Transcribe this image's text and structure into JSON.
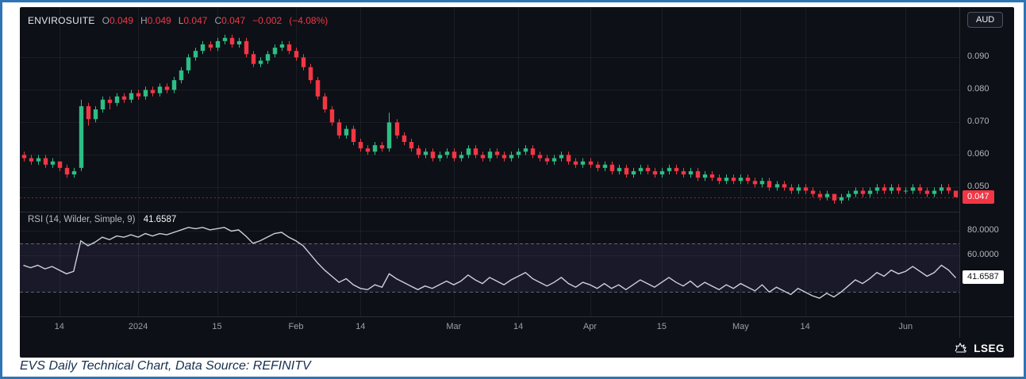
{
  "quote": {
    "symbol": "ENVIROSUITE",
    "open_label": "O",
    "open": "0.049",
    "high_label": "H",
    "high": "0.049",
    "low_label": "L",
    "low": "0.047",
    "close_label": "C",
    "close": "0.047",
    "change": "−0.002",
    "change_pct": "(−4.08%)"
  },
  "currency_button": "AUD",
  "price_axis": {
    "labels": [
      "0.090",
      "0.080",
      "0.070",
      "0.060",
      "0.050"
    ],
    "last_price_badge": "0.047"
  },
  "rsi": {
    "label": "RSI (14, Wilder, Simple, 9)",
    "value": "41.6587",
    "axis_labels": [
      "80.0000",
      "60.0000"
    ],
    "badge": "41.6587"
  },
  "footer": {
    "brand": "LSEG"
  },
  "caption": "EVS Daily Technical Chart, Data Source: REFINITV",
  "colors": {
    "up": "#2ebd85",
    "down": "#f23645",
    "rsi_line": "#cdd0d9",
    "rsi_band_fill": "rgba(140,110,220,0.10)",
    "grid": "rgba(255,255,255,0.055)",
    "separator": "#2a2e39",
    "background": "#0d1016",
    "price_badge_bg": "#f23645",
    "frame_border": "#2e75b6",
    "caption_text": "#16304f"
  },
  "chart_data": {
    "type": "candlestick",
    "title": "ENVIROSUITE daily candlestick with RSI pane",
    "legend_position": "top-left",
    "grid": true,
    "x_ticks": [
      {
        "label": "14",
        "index": 5
      },
      {
        "label": "2024",
        "index": 16
      },
      {
        "label": "15",
        "index": 27
      },
      {
        "label": "Feb",
        "index": 38
      },
      {
        "label": "14",
        "index": 47
      },
      {
        "label": "Mar",
        "index": 60
      },
      {
        "label": "14",
        "index": 69
      },
      {
        "label": "Apr",
        "index": 79
      },
      {
        "label": "15",
        "index": 89
      },
      {
        "label": "May",
        "index": 100
      },
      {
        "label": "14",
        "index": 109
      },
      {
        "label": "Jun",
        "index": 123
      }
    ],
    "price_pane": {
      "ylim": [
        0.044,
        0.104
      ],
      "gridlines": [
        0.09,
        0.08,
        0.07,
        0.06,
        0.05
      ],
      "last_price": 0.047,
      "ohlc": [
        [
          0.06,
          0.061,
          0.058,
          0.059
        ],
        [
          0.059,
          0.06,
          0.057,
          0.058
        ],
        [
          0.058,
          0.06,
          0.057,
          0.059
        ],
        [
          0.059,
          0.06,
          0.056,
          0.057
        ],
        [
          0.057,
          0.059,
          0.056,
          0.058
        ],
        [
          0.058,
          0.058,
          0.055,
          0.056
        ],
        [
          0.056,
          0.057,
          0.053,
          0.054
        ],
        [
          0.054,
          0.056,
          0.053,
          0.055
        ],
        [
          0.056,
          0.077,
          0.055,
          0.075
        ],
        [
          0.075,
          0.076,
          0.069,
          0.071
        ],
        [
          0.071,
          0.075,
          0.07,
          0.074
        ],
        [
          0.074,
          0.078,
          0.073,
          0.077
        ],
        [
          0.077,
          0.078,
          0.074,
          0.076
        ],
        [
          0.076,
          0.079,
          0.075,
          0.078
        ],
        [
          0.078,
          0.079,
          0.076,
          0.077
        ],
        [
          0.077,
          0.08,
          0.076,
          0.079
        ],
        [
          0.079,
          0.08,
          0.077,
          0.078
        ],
        [
          0.078,
          0.081,
          0.077,
          0.08
        ],
        [
          0.08,
          0.081,
          0.078,
          0.079
        ],
        [
          0.079,
          0.082,
          0.078,
          0.081
        ],
        [
          0.081,
          0.082,
          0.079,
          0.08
        ],
        [
          0.08,
          0.084,
          0.079,
          0.083
        ],
        [
          0.083,
          0.087,
          0.082,
          0.086
        ],
        [
          0.086,
          0.091,
          0.085,
          0.09
        ],
        [
          0.09,
          0.093,
          0.089,
          0.092
        ],
        [
          0.092,
          0.095,
          0.091,
          0.094
        ],
        [
          0.094,
          0.095,
          0.092,
          0.093
        ],
        [
          0.093,
          0.096,
          0.092,
          0.095
        ],
        [
          0.095,
          0.097,
          0.094,
          0.096
        ],
        [
          0.096,
          0.097,
          0.093,
          0.094
        ],
        [
          0.094,
          0.096,
          0.093,
          0.095
        ],
        [
          0.095,
          0.096,
          0.09,
          0.091
        ],
        [
          0.091,
          0.092,
          0.087,
          0.088
        ],
        [
          0.088,
          0.09,
          0.087,
          0.089
        ],
        [
          0.089,
          0.092,
          0.088,
          0.091
        ],
        [
          0.091,
          0.094,
          0.09,
          0.093
        ],
        [
          0.093,
          0.095,
          0.092,
          0.094
        ],
        [
          0.094,
          0.095,
          0.091,
          0.092
        ],
        [
          0.092,
          0.093,
          0.089,
          0.09
        ],
        [
          0.09,
          0.091,
          0.086,
          0.087
        ],
        [
          0.087,
          0.088,
          0.082,
          0.083
        ],
        [
          0.083,
          0.084,
          0.077,
          0.078
        ],
        [
          0.078,
          0.079,
          0.073,
          0.074
        ],
        [
          0.074,
          0.075,
          0.069,
          0.07
        ],
        [
          0.07,
          0.071,
          0.065,
          0.066
        ],
        [
          0.066,
          0.069,
          0.065,
          0.068
        ],
        [
          0.068,
          0.069,
          0.063,
          0.064
        ],
        [
          0.064,
          0.065,
          0.061,
          0.062
        ],
        [
          0.062,
          0.063,
          0.06,
          0.061
        ],
        [
          0.061,
          0.064,
          0.06,
          0.063
        ],
        [
          0.063,
          0.064,
          0.061,
          0.062
        ],
        [
          0.062,
          0.073,
          0.061,
          0.07
        ],
        [
          0.07,
          0.071,
          0.065,
          0.066
        ],
        [
          0.066,
          0.067,
          0.063,
          0.064
        ],
        [
          0.064,
          0.065,
          0.061,
          0.062
        ],
        [
          0.062,
          0.063,
          0.059,
          0.06
        ],
        [
          0.06,
          0.062,
          0.059,
          0.061
        ],
        [
          0.061,
          0.062,
          0.058,
          0.059
        ],
        [
          0.059,
          0.061,
          0.058,
          0.06
        ],
        [
          0.06,
          0.062,
          0.059,
          0.061
        ],
        [
          0.061,
          0.062,
          0.058,
          0.059
        ],
        [
          0.059,
          0.061,
          0.058,
          0.06
        ],
        [
          0.06,
          0.063,
          0.059,
          0.062
        ],
        [
          0.062,
          0.063,
          0.059,
          0.06
        ],
        [
          0.06,
          0.061,
          0.058,
          0.059
        ],
        [
          0.059,
          0.062,
          0.058,
          0.061
        ],
        [
          0.061,
          0.062,
          0.059,
          0.06
        ],
        [
          0.06,
          0.061,
          0.058,
          0.059
        ],
        [
          0.059,
          0.061,
          0.058,
          0.06
        ],
        [
          0.06,
          0.062,
          0.059,
          0.061
        ],
        [
          0.061,
          0.063,
          0.06,
          0.062
        ],
        [
          0.062,
          0.063,
          0.059,
          0.06
        ],
        [
          0.06,
          0.061,
          0.058,
          0.059
        ],
        [
          0.059,
          0.06,
          0.057,
          0.058
        ],
        [
          0.058,
          0.06,
          0.057,
          0.059
        ],
        [
          0.059,
          0.061,
          0.058,
          0.06
        ],
        [
          0.06,
          0.061,
          0.057,
          0.058
        ],
        [
          0.058,
          0.059,
          0.056,
          0.057
        ],
        [
          0.057,
          0.059,
          0.056,
          0.058
        ],
        [
          0.058,
          0.059,
          0.056,
          0.057
        ],
        [
          0.057,
          0.058,
          0.055,
          0.056
        ],
        [
          0.056,
          0.058,
          0.055,
          0.057
        ],
        [
          0.057,
          0.058,
          0.054,
          0.055
        ],
        [
          0.055,
          0.057,
          0.054,
          0.056
        ],
        [
          0.056,
          0.057,
          0.053,
          0.054
        ],
        [
          0.054,
          0.056,
          0.053,
          0.055
        ],
        [
          0.055,
          0.057,
          0.054,
          0.056
        ],
        [
          0.056,
          0.057,
          0.054,
          0.055
        ],
        [
          0.055,
          0.056,
          0.053,
          0.054
        ],
        [
          0.054,
          0.056,
          0.053,
          0.055
        ],
        [
          0.055,
          0.057,
          0.054,
          0.056
        ],
        [
          0.056,
          0.057,
          0.054,
          0.055
        ],
        [
          0.055,
          0.056,
          0.053,
          0.054
        ],
        [
          0.054,
          0.056,
          0.053,
          0.055
        ],
        [
          0.055,
          0.056,
          0.052,
          0.053
        ],
        [
          0.053,
          0.055,
          0.052,
          0.054
        ],
        [
          0.054,
          0.055,
          0.052,
          0.053
        ],
        [
          0.053,
          0.054,
          0.051,
          0.052
        ],
        [
          0.052,
          0.054,
          0.051,
          0.053
        ],
        [
          0.053,
          0.054,
          0.051,
          0.052
        ],
        [
          0.052,
          0.054,
          0.051,
          0.053
        ],
        [
          0.053,
          0.054,
          0.051,
          0.052
        ],
        [
          0.052,
          0.053,
          0.05,
          0.051
        ],
        [
          0.051,
          0.053,
          0.05,
          0.052
        ],
        [
          0.052,
          0.053,
          0.049,
          0.05
        ],
        [
          0.05,
          0.052,
          0.049,
          0.051
        ],
        [
          0.051,
          0.052,
          0.049,
          0.05
        ],
        [
          0.05,
          0.051,
          0.048,
          0.049
        ],
        [
          0.049,
          0.051,
          0.048,
          0.05
        ],
        [
          0.05,
          0.051,
          0.048,
          0.049
        ],
        [
          0.049,
          0.05,
          0.047,
          0.048
        ],
        [
          0.048,
          0.049,
          0.046,
          0.047
        ],
        [
          0.047,
          0.049,
          0.046,
          0.048
        ],
        [
          0.048,
          0.048,
          0.045,
          0.046
        ],
        [
          0.046,
          0.048,
          0.045,
          0.047
        ],
        [
          0.047,
          0.049,
          0.046,
          0.048
        ],
        [
          0.048,
          0.05,
          0.047,
          0.049
        ],
        [
          0.049,
          0.05,
          0.047,
          0.048
        ],
        [
          0.048,
          0.05,
          0.047,
          0.049
        ],
        [
          0.049,
          0.051,
          0.048,
          0.05
        ],
        [
          0.05,
          0.051,
          0.048,
          0.049
        ],
        [
          0.049,
          0.051,
          0.048,
          0.05
        ],
        [
          0.05,
          0.051,
          0.048,
          0.049
        ],
        [
          0.049,
          0.05,
          0.048,
          0.049
        ],
        [
          0.049,
          0.051,
          0.048,
          0.05
        ],
        [
          0.05,
          0.051,
          0.048,
          0.049
        ],
        [
          0.049,
          0.05,
          0.047,
          0.048
        ],
        [
          0.048,
          0.05,
          0.047,
          0.049
        ],
        [
          0.049,
          0.051,
          0.048,
          0.05
        ],
        [
          0.05,
          0.051,
          0.048,
          0.049
        ],
        [
          0.049,
          0.049,
          0.047,
          0.047
        ]
      ]
    },
    "rsi_pane": {
      "ylim": [
        14,
        92
      ],
      "gridlines": [
        80,
        60
      ],
      "band": [
        70,
        30
      ],
      "last_value": 41.6587,
      "values": [
        52,
        50,
        52,
        49,
        51,
        48,
        45,
        47,
        72,
        68,
        71,
        75,
        73,
        76,
        75,
        77,
        75,
        78,
        76,
        78,
        77,
        79,
        81,
        83,
        82,
        83,
        81,
        82,
        83,
        80,
        81,
        76,
        70,
        72,
        75,
        78,
        79,
        75,
        72,
        68,
        61,
        54,
        48,
        43,
        38,
        41,
        36,
        33,
        32,
        36,
        34,
        45,
        41,
        38,
        35,
        32,
        35,
        33,
        36,
        39,
        36,
        39,
        44,
        40,
        37,
        42,
        39,
        36,
        40,
        43,
        46,
        41,
        38,
        35,
        38,
        42,
        37,
        34,
        38,
        36,
        33,
        37,
        33,
        36,
        32,
        36,
        40,
        37,
        34,
        38,
        42,
        38,
        35,
        39,
        34,
        38,
        35,
        32,
        36,
        33,
        37,
        34,
        31,
        36,
        30,
        34,
        31,
        28,
        33,
        30,
        27,
        25,
        29,
        26,
        30,
        35,
        40,
        37,
        41,
        46,
        43,
        48,
        45,
        47,
        51,
        47,
        43,
        46,
        52,
        48,
        41.6587
      ]
    }
  }
}
